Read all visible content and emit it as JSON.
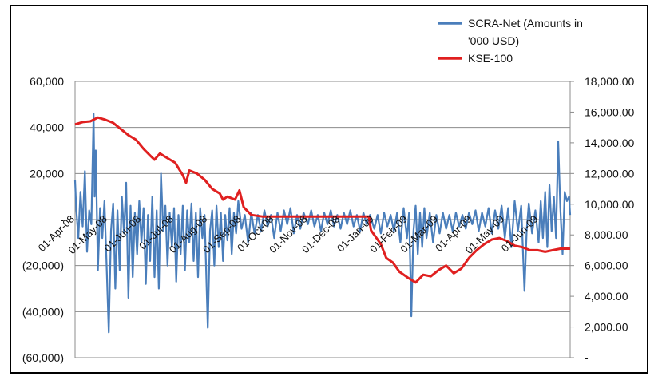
{
  "chart_data": {
    "type": "line",
    "title": "",
    "xlabel": "",
    "ylabel": "",
    "y_left": {
      "lim": [
        -60000,
        60000
      ],
      "ticks": [
        60000,
        40000,
        20000,
        0,
        -20000,
        -40000,
        -60000
      ],
      "tick_labels": [
        "60,000",
        "40,000",
        "20,000",
        "-",
        "(20,000)",
        "(40,000)",
        "(60,000)"
      ]
    },
    "y_right": {
      "lim": [
        0,
        18000
      ],
      "ticks": [
        18000,
        16000,
        14000,
        12000,
        10000,
        8000,
        6000,
        4000,
        2000,
        0
      ],
      "tick_labels": [
        "18,000.00",
        "16,000.00",
        "14,000.00",
        "12,000.00",
        "10,000.00",
        "8,000.00",
        "6,000.00",
        "4,000.00",
        "2,000.00",
        "-"
      ]
    },
    "x_range": [
      "2008-04-01",
      "2009-06-30"
    ],
    "x_tick_dates": [
      "2008-04-01",
      "2008-05-01",
      "2008-06-01",
      "2008-07-01",
      "2008-08-01",
      "2008-09-01",
      "2008-10-01",
      "2008-11-01",
      "2008-12-01",
      "2009-01-01",
      "2009-02-01",
      "2009-03-01",
      "2009-04-01",
      "2009-05-01",
      "2009-06-01"
    ],
    "x_tick_labels": [
      "01-Apr-08",
      "01-May-08",
      "01-Jun-08",
      "01-Jul-08",
      "01-Aug-08",
      "01-Sep-08",
      "01-Oct-08",
      "01-Nov-08",
      "01-Dec-08",
      "01-Jan-09",
      "01-Feb-09",
      "01-Mar-09",
      "01-Apr-09",
      "01-May-09",
      "01-Jun-09"
    ],
    "grid": "horizontal",
    "legend_position": "top-right",
    "series": [
      {
        "name": "SCRA-Net (Amounts in '000 USD)",
        "axis": "left",
        "color": "#4a7ebb",
        "points": [
          [
            "2008-04-01",
            17000
          ],
          [
            "2008-04-02",
            5000
          ],
          [
            "2008-04-04",
            -8000
          ],
          [
            "2008-04-06",
            12000
          ],
          [
            "2008-04-08",
            -3000
          ],
          [
            "2008-04-10",
            21000
          ],
          [
            "2008-04-12",
            -14000
          ],
          [
            "2008-04-14",
            4000
          ],
          [
            "2008-04-16",
            -2000
          ],
          [
            "2008-04-18",
            46000
          ],
          [
            "2008-04-19",
            10000
          ],
          [
            "2008-04-20",
            30000
          ],
          [
            "2008-04-22",
            -22000
          ],
          [
            "2008-04-24",
            5000
          ],
          [
            "2008-04-26",
            -8000
          ],
          [
            "2008-04-28",
            8000
          ],
          [
            "2008-04-30",
            -20000
          ],
          [
            "2008-05-02",
            -49000
          ],
          [
            "2008-05-04",
            -5000
          ],
          [
            "2008-05-06",
            7000
          ],
          [
            "2008-05-08",
            -30000
          ],
          [
            "2008-05-10",
            4000
          ],
          [
            "2008-05-12",
            -22000
          ],
          [
            "2008-05-14",
            10000
          ],
          [
            "2008-05-16",
            -6000
          ],
          [
            "2008-05-18",
            16000
          ],
          [
            "2008-05-20",
            -34000
          ],
          [
            "2008-05-22",
            6000
          ],
          [
            "2008-05-24",
            -25000
          ],
          [
            "2008-05-26",
            3000
          ],
          [
            "2008-05-28",
            -15000
          ],
          [
            "2008-05-30",
            8000
          ],
          [
            "2008-06-01",
            -10000
          ],
          [
            "2008-06-03",
            5000
          ],
          [
            "2008-06-05",
            -28000
          ],
          [
            "2008-06-07",
            2000
          ],
          [
            "2008-06-09",
            -18000
          ],
          [
            "2008-06-11",
            10000
          ],
          [
            "2008-06-13",
            -25000
          ],
          [
            "2008-06-15",
            4000
          ],
          [
            "2008-06-17",
            -30000
          ],
          [
            "2008-06-19",
            20000
          ],
          [
            "2008-06-21",
            -5000
          ],
          [
            "2008-06-23",
            6000
          ],
          [
            "2008-06-25",
            -20000
          ],
          [
            "2008-06-27",
            3000
          ],
          [
            "2008-06-29",
            -12000
          ],
          [
            "2008-07-01",
            5000
          ],
          [
            "2008-07-03",
            -27000
          ],
          [
            "2008-07-05",
            2000
          ],
          [
            "2008-07-07",
            -15000
          ],
          [
            "2008-07-09",
            6000
          ],
          [
            "2008-07-11",
            -22000
          ],
          [
            "2008-07-13",
            4000
          ],
          [
            "2008-07-15",
            -10000
          ],
          [
            "2008-07-17",
            7000
          ],
          [
            "2008-07-19",
            -18000
          ],
          [
            "2008-07-21",
            3000
          ],
          [
            "2008-07-23",
            -25000
          ],
          [
            "2008-07-25",
            5000
          ],
          [
            "2008-07-27",
            -8000
          ],
          [
            "2008-07-29",
            2000
          ],
          [
            "2008-08-01",
            -47000
          ],
          [
            "2008-08-03",
            -5000
          ],
          [
            "2008-08-05",
            4000
          ],
          [
            "2008-08-07",
            -20000
          ],
          [
            "2008-08-09",
            6000
          ],
          [
            "2008-08-11",
            -12000
          ],
          [
            "2008-08-13",
            3000
          ],
          [
            "2008-08-15",
            -18000
          ],
          [
            "2008-08-17",
            2000
          ],
          [
            "2008-08-19",
            -9000
          ],
          [
            "2008-08-21",
            5000
          ],
          [
            "2008-08-23",
            -15000
          ],
          [
            "2008-08-25",
            3000
          ],
          [
            "2008-08-27",
            -6000
          ],
          [
            "2008-08-29",
            8000
          ],
          [
            "2008-09-01",
            -4000
          ],
          [
            "2008-09-04",
            2000
          ],
          [
            "2008-09-07",
            -10000
          ],
          [
            "2008-09-10",
            3000
          ],
          [
            "2008-09-13",
            -6000
          ],
          [
            "2008-09-16",
            2000
          ],
          [
            "2008-09-19",
            -5000
          ],
          [
            "2008-09-22",
            4000
          ],
          [
            "2008-09-25",
            -3000
          ],
          [
            "2008-09-28",
            2000
          ],
          [
            "2008-10-01",
            -8000
          ],
          [
            "2008-10-04",
            3000
          ],
          [
            "2008-10-07",
            -5000
          ],
          [
            "2008-10-10",
            4000
          ],
          [
            "2008-10-13",
            -2000
          ],
          [
            "2008-10-16",
            5000
          ],
          [
            "2008-10-19",
            -6000
          ],
          [
            "2008-10-22",
            2000
          ],
          [
            "2008-10-25",
            -4000
          ],
          [
            "2008-10-28",
            3000
          ],
          [
            "2008-11-01",
            -2000
          ],
          [
            "2008-11-04",
            4000
          ],
          [
            "2008-11-07",
            -3000
          ],
          [
            "2008-11-10",
            2000
          ],
          [
            "2008-11-13",
            -5000
          ],
          [
            "2008-11-16",
            3000
          ],
          [
            "2008-11-19",
            -2000
          ],
          [
            "2008-11-22",
            4000
          ],
          [
            "2008-11-25",
            -3000
          ],
          [
            "2008-11-28",
            2000
          ],
          [
            "2008-12-01",
            -4000
          ],
          [
            "2008-12-04",
            3000
          ],
          [
            "2008-12-07",
            -2000
          ],
          [
            "2008-12-10",
            4000
          ],
          [
            "2008-12-13",
            -3000
          ],
          [
            "2008-12-16",
            2000
          ],
          [
            "2008-12-19",
            -5000
          ],
          [
            "2008-12-22",
            3000
          ],
          [
            "2008-12-25",
            -2000
          ],
          [
            "2008-12-28",
            2000
          ],
          [
            "2009-01-01",
            -4000
          ],
          [
            "2009-01-04",
            2000
          ],
          [
            "2009-01-07",
            -6000
          ],
          [
            "2009-01-10",
            3000
          ],
          [
            "2009-01-13",
            -3000
          ],
          [
            "2009-01-16",
            2000
          ],
          [
            "2009-01-19",
            -5000
          ],
          [
            "2009-01-22",
            3000
          ],
          [
            "2009-01-25",
            -10000
          ],
          [
            "2009-01-28",
            5000
          ],
          [
            "2009-01-31",
            -8000
          ],
          [
            "2009-02-02",
            3000
          ],
          [
            "2009-02-04",
            -42000
          ],
          [
            "2009-02-06",
            -5000
          ],
          [
            "2009-02-08",
            6000
          ],
          [
            "2009-02-10",
            -15000
          ],
          [
            "2009-02-12",
            3000
          ],
          [
            "2009-02-14",
            -12000
          ],
          [
            "2009-02-16",
            5000
          ],
          [
            "2009-02-18",
            -8000
          ],
          [
            "2009-02-21",
            3000
          ],
          [
            "2009-02-24",
            -10000
          ],
          [
            "2009-02-27",
            2000
          ],
          [
            "2009-03-02",
            -6000
          ],
          [
            "2009-03-05",
            3000
          ],
          [
            "2009-03-08",
            -4000
          ],
          [
            "2009-03-11",
            2000
          ],
          [
            "2009-03-14",
            -5000
          ],
          [
            "2009-03-17",
            3000
          ],
          [
            "2009-03-20",
            -3000
          ],
          [
            "2009-03-23",
            2000
          ],
          [
            "2009-03-26",
            -4000
          ],
          [
            "2009-03-29",
            3000
          ],
          [
            "2009-04-01",
            -2000
          ],
          [
            "2009-04-04",
            4000
          ],
          [
            "2009-04-07",
            -5000
          ],
          [
            "2009-04-10",
            3000
          ],
          [
            "2009-04-13",
            -3000
          ],
          [
            "2009-04-16",
            5000
          ],
          [
            "2009-04-19",
            -6000
          ],
          [
            "2009-04-22",
            4000
          ],
          [
            "2009-04-25",
            -4000
          ],
          [
            "2009-04-28",
            6000
          ],
          [
            "2009-05-01",
            -8000
          ],
          [
            "2009-05-04",
            5000
          ],
          [
            "2009-05-07",
            -12000
          ],
          [
            "2009-05-10",
            8000
          ],
          [
            "2009-05-13",
            -5000
          ],
          [
            "2009-05-16",
            6000
          ],
          [
            "2009-05-19",
            -31000
          ],
          [
            "2009-05-21",
            -5000
          ],
          [
            "2009-05-23",
            7000
          ],
          [
            "2009-05-26",
            -6000
          ],
          [
            "2009-05-29",
            4000
          ],
          [
            "2009-06-01",
            -10000
          ],
          [
            "2009-06-03",
            8000
          ],
          [
            "2009-06-05",
            -8000
          ],
          [
            "2009-06-07",
            12000
          ],
          [
            "2009-06-09",
            -12000
          ],
          [
            "2009-06-11",
            15000
          ],
          [
            "2009-06-13",
            -5000
          ],
          [
            "2009-06-15",
            10000
          ],
          [
            "2009-06-17",
            -8000
          ],
          [
            "2009-06-19",
            34000
          ],
          [
            "2009-06-21",
            5000
          ],
          [
            "2009-06-23",
            -15000
          ],
          [
            "2009-06-25",
            12000
          ],
          [
            "2009-06-27",
            8000
          ],
          [
            "2009-06-29",
            10000
          ],
          [
            "2009-06-30",
            2000
          ]
        ]
      },
      {
        "name": "KSE-100",
        "axis": "right",
        "color": "#e02020",
        "points": [
          [
            "2008-04-01",
            15200
          ],
          [
            "2008-04-08",
            15350
          ],
          [
            "2008-04-15",
            15400
          ],
          [
            "2008-04-22",
            15650
          ],
          [
            "2008-04-29",
            15500
          ],
          [
            "2008-05-06",
            15300
          ],
          [
            "2008-05-13",
            14900
          ],
          [
            "2008-05-20",
            14500
          ],
          [
            "2008-05-27",
            14200
          ],
          [
            "2008-06-03",
            13600
          ],
          [
            "2008-06-10",
            13100
          ],
          [
            "2008-06-13",
            12900
          ],
          [
            "2008-06-18",
            13300
          ],
          [
            "2008-06-25",
            13000
          ],
          [
            "2008-07-02",
            12700
          ],
          [
            "2008-07-09",
            11900
          ],
          [
            "2008-07-12",
            11400
          ],
          [
            "2008-07-15",
            12200
          ],
          [
            "2008-07-22",
            12000
          ],
          [
            "2008-07-29",
            11600
          ],
          [
            "2008-08-05",
            11000
          ],
          [
            "2008-08-12",
            10700
          ],
          [
            "2008-08-15",
            10300
          ],
          [
            "2008-08-19",
            10500
          ],
          [
            "2008-08-26",
            10300
          ],
          [
            "2008-08-30",
            10900
          ],
          [
            "2008-09-03",
            9800
          ],
          [
            "2008-09-10",
            9300
          ],
          [
            "2008-09-20",
            9200
          ],
          [
            "2008-10-01",
            9200
          ],
          [
            "2008-11-01",
            9200
          ],
          [
            "2008-12-01",
            9200
          ],
          [
            "2008-12-27",
            9200
          ],
          [
            "2008-12-29",
            8300
          ],
          [
            "2009-01-03",
            7800
          ],
          [
            "2009-01-07",
            7400
          ],
          [
            "2009-01-12",
            6500
          ],
          [
            "2009-01-18",
            6200
          ],
          [
            "2009-01-24",
            5600
          ],
          [
            "2009-02-01",
            5200
          ],
          [
            "2009-02-08",
            4900
          ],
          [
            "2009-02-15",
            5400
          ],
          [
            "2009-02-22",
            5300
          ],
          [
            "2009-03-01",
            5700
          ],
          [
            "2009-03-08",
            6000
          ],
          [
            "2009-03-15",
            5500
          ],
          [
            "2009-03-22",
            5800
          ],
          [
            "2009-03-29",
            6500
          ],
          [
            "2009-04-05",
            7000
          ],
          [
            "2009-04-12",
            7400
          ],
          [
            "2009-04-19",
            7700
          ],
          [
            "2009-04-26",
            7800
          ],
          [
            "2009-05-03",
            7600
          ],
          [
            "2009-05-10",
            7300
          ],
          [
            "2009-05-17",
            7200
          ],
          [
            "2009-05-24",
            7000
          ],
          [
            "2009-05-31",
            7000
          ],
          [
            "2009-06-07",
            6900
          ],
          [
            "2009-06-14",
            7000
          ],
          [
            "2009-06-21",
            7100
          ],
          [
            "2009-06-30",
            7100
          ]
        ]
      }
    ],
    "legend": [
      {
        "lines": [
          "SCRA-Net (Amounts in",
          "'000 USD)"
        ],
        "color": "#4a7ebb"
      },
      {
        "lines": [
          "KSE-100"
        ],
        "color": "#e02020"
      }
    ]
  }
}
